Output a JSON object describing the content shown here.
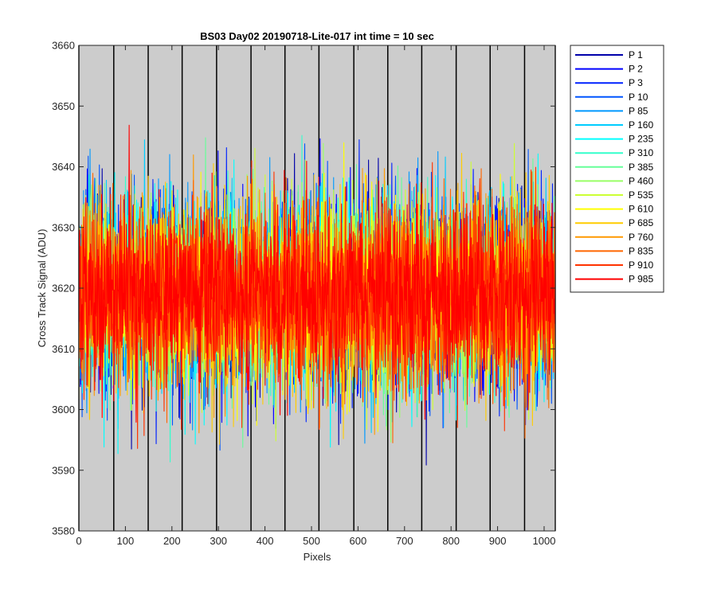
{
  "chart_data": {
    "type": "line",
    "title": "BS03 Day02 20190718-Lite-017 int time = 10 sec",
    "xlabel": "Pixels",
    "ylabel": "Cross Track Signal (ADU)",
    "xlim": [
      0,
      1024
    ],
    "ylim": [
      3580,
      3660
    ],
    "xticks": [
      0,
      100,
      200,
      300,
      400,
      500,
      600,
      700,
      800,
      900,
      1000
    ],
    "yticks": [
      3580,
      3590,
      3600,
      3610,
      3620,
      3630,
      3640,
      3650,
      3660
    ],
    "background_color": "#cccccc",
    "tap_boundaries": [
      0,
      75,
      149,
      222,
      296,
      370,
      443,
      516,
      591,
      664,
      737,
      811,
      884,
      958,
      1024
    ],
    "noise": {
      "mean": 3619,
      "std": 7.5,
      "points_per_series": 1024
    },
    "legend_position": "outside-right",
    "series": [
      {
        "name": "P 1",
        "color": "#0000aa"
      },
      {
        "name": "P 2",
        "color": "#0000ff"
      },
      {
        "name": "P 3",
        "color": "#0022ff"
      },
      {
        "name": "P 10",
        "color": "#0055ff"
      },
      {
        "name": "P 85",
        "color": "#0099ff"
      },
      {
        "name": "P 160",
        "color": "#00ccff"
      },
      {
        "name": "P 235",
        "color": "#00ffff"
      },
      {
        "name": "P 310",
        "color": "#33ffcc"
      },
      {
        "name": "P 385",
        "color": "#66ff99"
      },
      {
        "name": "P 460",
        "color": "#99ff66"
      },
      {
        "name": "P 535",
        "color": "#ccff33"
      },
      {
        "name": "P 610",
        "color": "#ffff00"
      },
      {
        "name": "P 685",
        "color": "#ffcc00"
      },
      {
        "name": "P 760",
        "color": "#ff9900"
      },
      {
        "name": "P 835",
        "color": "#ff6600"
      },
      {
        "name": "P 910",
        "color": "#ff3300"
      },
      {
        "name": "P 985",
        "color": "#ff0000"
      }
    ]
  }
}
